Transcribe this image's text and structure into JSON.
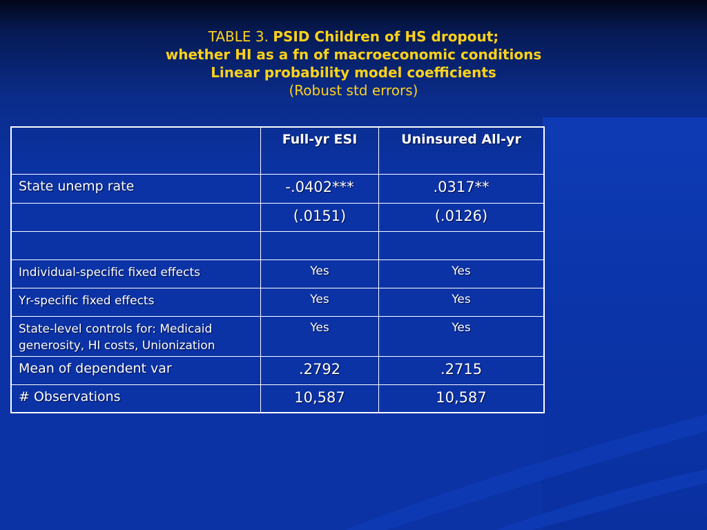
{
  "title": {
    "prefix": "TABLE 3.",
    "line1": "PSID Children of HS dropout;",
    "line2": "whether HI as a fn of macroeconomic conditions",
    "line3": "Linear probability model coefficients",
    "line4": "(Robust std errors)"
  },
  "table": {
    "headers": [
      "",
      "Full-yr ESI",
      "Uninsured All-yr"
    ],
    "rows": [
      {
        "label": "State unemp rate",
        "esi": "-.0402***",
        "unins": ".0317**"
      },
      {
        "label": "",
        "esi": "(.0151)",
        "unins": "(.0126)"
      },
      {
        "label": "",
        "esi": "",
        "unins": ""
      },
      {
        "label": "Individual-specific fixed effects",
        "esi": "Yes",
        "unins": "Yes"
      },
      {
        "label": "Yr-specific fixed effects",
        "esi": "Yes",
        "unins": "Yes"
      },
      {
        "label": "State-level controls for: Medicaid generosity, HI costs, Unionization",
        "esi": "Yes",
        "unins": "Yes"
      },
      {
        "label": "Mean of dependent var",
        "esi": ".2792",
        "unins": ".2715"
      },
      {
        "label": "# Observations",
        "esi": "10,587",
        "unins": "10,587"
      }
    ]
  },
  "colors": {
    "background": "#0b33a6",
    "title_text": "#ffd21a",
    "table_text": "#ffffff",
    "table_border": "#ffffff"
  }
}
